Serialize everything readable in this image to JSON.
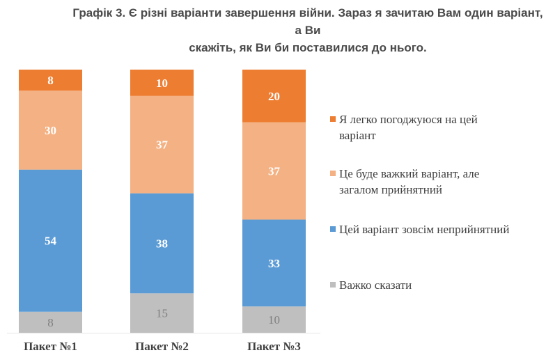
{
  "chart_data": {
    "type": "bar",
    "stacked": true,
    "title": "Графік 3. Є різні варіанти завершення війни. Зараз я зачитаю Вам один варіант, а Ви скажіть, як Ви би поставилися до нього.",
    "title_lines": [
      "Графік 3. Є різні варіанти завершення війни. Зараз я зачитаю Вам один варіант, а Ви",
      "скажіть, як Ви би поставилися до нього."
    ],
    "xlabel": "",
    "ylabel": "",
    "ylim": [
      0,
      100
    ],
    "grid": false,
    "legend_position": "right",
    "categories": [
      "Пакет №1",
      "Пакет №2",
      "Пакет №3"
    ],
    "series": [
      {
        "name": "Я легко погоджуюся на цей варіант",
        "legend_lines": [
          "Я легко погоджуюся на цей",
          "варіант"
        ],
        "color": "#ED7D31",
        "values": [
          8,
          10,
          20
        ]
      },
      {
        "name": "Це буде важкий варіант, але загалом прийнятний",
        "legend_lines": [
          "Це буде важкий варіант, але",
          "загалом прийнятний"
        ],
        "color": "#F4B183",
        "values": [
          30,
          37,
          37
        ]
      },
      {
        "name": "Цей варіант зовсім неприйнятний",
        "legend_lines": [
          "Цей варіант зовсім неприйнятний"
        ],
        "color": "#5B9BD5",
        "values": [
          54,
          38,
          33
        ]
      },
      {
        "name": "Важко сказати",
        "legend_lines": [
          "Важко сказати"
        ],
        "color": "#BFBFBF",
        "values": [
          8,
          15,
          10
        ]
      }
    ]
  }
}
